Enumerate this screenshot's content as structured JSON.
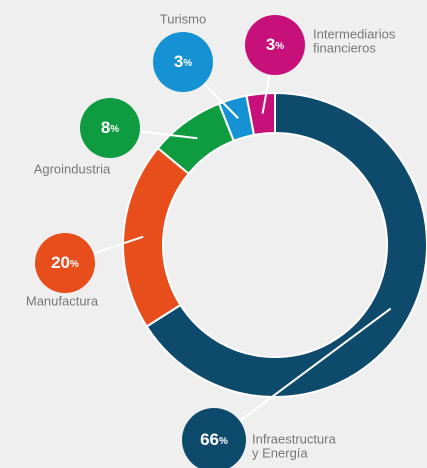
{
  "chart_data": {
    "type": "donut",
    "categories": [
      [
        "Infraestructura",
        "y Energía"
      ],
      [
        "Manufactura"
      ],
      [
        "Agroindustria"
      ],
      [
        "Turismo"
      ],
      [
        "Intermediarios",
        "financieros"
      ]
    ],
    "values": [
      66,
      20,
      8,
      3,
      3
    ],
    "value_unit": "%",
    "colors": [
      "#0d4a6b",
      "#e84e1b",
      "#0f9b3f",
      "#1592d3",
      "#c8107a"
    ]
  }
}
